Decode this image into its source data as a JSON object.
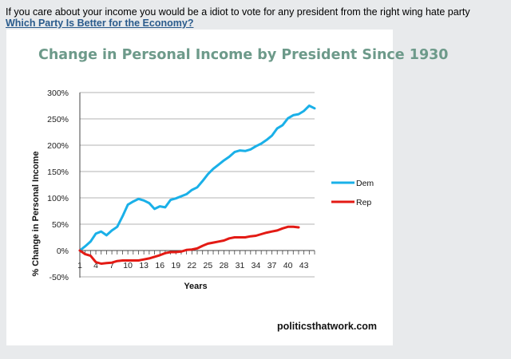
{
  "intro_text": "If you care about your income you would be a idiot to vote for any president from the right wing hate party",
  "link_text": "Which Party Is Better for the Economy?",
  "credit": "politicsthatwork.com",
  "chart_data": {
    "type": "line",
    "title": "Change in Personal Income by President Since 1930",
    "xlabel": "Years",
    "ylabel": "% Change in Personal Income",
    "x_ticks": [
      1,
      4,
      7,
      10,
      13,
      16,
      19,
      22,
      25,
      28,
      31,
      34,
      37,
      40,
      43
    ],
    "x_range": [
      1,
      45
    ],
    "y_ticks": [
      "300%",
      "250%",
      "200%",
      "150%",
      "100%",
      "50%",
      "0%",
      "-50%"
    ],
    "y_tick_values": [
      300,
      250,
      200,
      150,
      100,
      50,
      0,
      -50
    ],
    "ylim": [
      -50,
      300
    ],
    "grid": "horizontal",
    "legend_position": "right",
    "series": [
      {
        "name": "Dem",
        "color": "#1ab0e8",
        "values": [
          0,
          8,
          17,
          32,
          36,
          29,
          38,
          45,
          65,
          87,
          93,
          98,
          95,
          90,
          79,
          84,
          82,
          96,
          99,
          103,
          107,
          115,
          120,
          132,
          145,
          155,
          163,
          171,
          178,
          187,
          190,
          189,
          192,
          198,
          203,
          210,
          218,
          232,
          238,
          251,
          257,
          259,
          265,
          275,
          270
        ]
      },
      {
        "name": "Rep",
        "color": "#e31a14",
        "values": [
          0,
          -7,
          -10,
          -22,
          -25,
          -24,
          -23,
          -20,
          -19,
          -19,
          -19,
          -19,
          -17,
          -15,
          -12,
          -9,
          -5,
          -3,
          -3,
          -2,
          1,
          2,
          4,
          9,
          13,
          15,
          17,
          19,
          23,
          25,
          25,
          25,
          27,
          28,
          31,
          34,
          36,
          38,
          42,
          45,
          45,
          44
        ]
      }
    ]
  }
}
